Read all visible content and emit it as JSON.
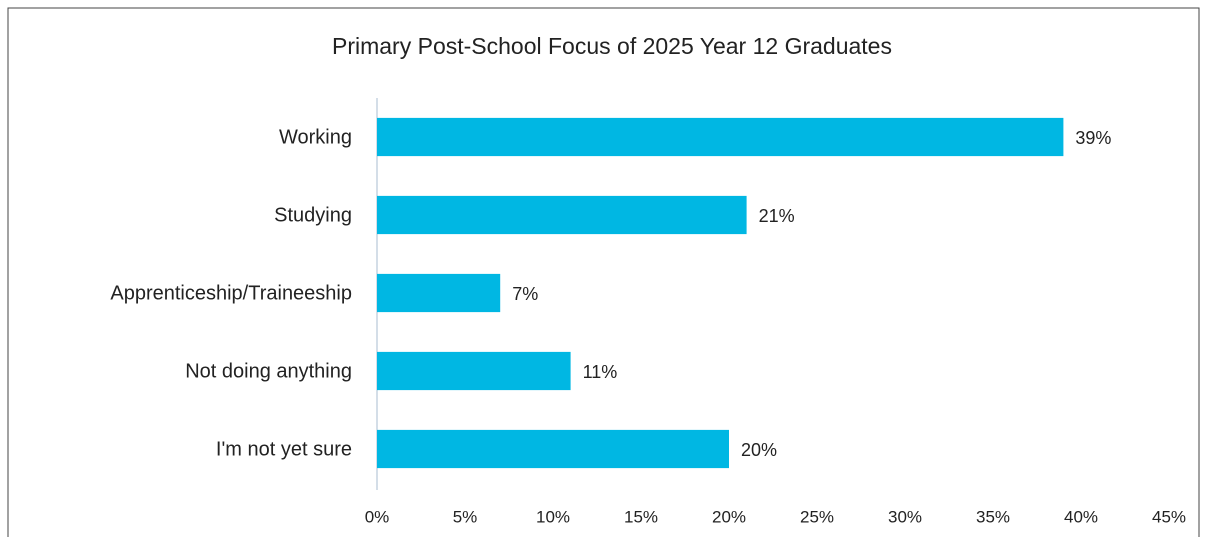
{
  "chart_data": {
    "type": "bar",
    "orientation": "horizontal",
    "title": "Primary Post-School Focus of 2025 Year 12 Graduates",
    "categories": [
      "Working",
      "Studying",
      "Apprenticeship/Traineeship",
      "Not doing anything",
      "I'm not yet sure"
    ],
    "values": [
      39,
      21,
      7,
      11,
      20
    ],
    "value_labels": [
      "39%",
      "21%",
      "7%",
      "11%",
      "20%"
    ],
    "color": "#00b7e3",
    "xlim": [
      0,
      45
    ],
    "xticks": [
      {
        "value": 0,
        "label": "0%"
      },
      {
        "value": 5,
        "label": "5%"
      },
      {
        "value": 10,
        "label": "10%"
      },
      {
        "value": 15,
        "label": "15%"
      },
      {
        "value": 20,
        "label": "20%"
      },
      {
        "value": 25,
        "label": "25%"
      },
      {
        "value": 30,
        "label": "30%"
      },
      {
        "value": 35,
        "label": "35%"
      },
      {
        "value": 40,
        "label": "40%"
      },
      {
        "value": 45,
        "label": "45%"
      }
    ],
    "grid": false
  }
}
